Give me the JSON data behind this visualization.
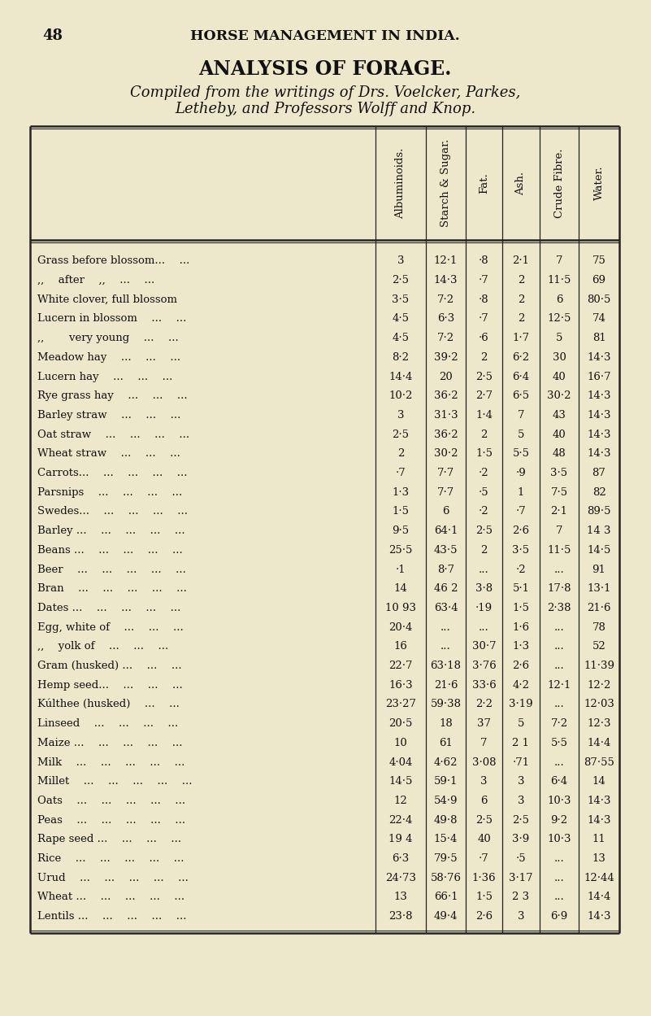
{
  "page_num": "48",
  "header": "HORSE MANAGEMENT IN INDIA.",
  "title": "ANALYSIS OF FORAGE.",
  "subtitle1": "Compiled from the writings of Drs. Voelcker, Parkes,",
  "subtitle2": "Letheby, and Professors Wolff and Knop.",
  "col_headers": [
    "Albuminoids.",
    "Starch & Sugar.",
    "Fat.",
    "Ash.",
    "Crude Fibre.",
    "Water."
  ],
  "rows": [
    [
      "Grass before blossom...  ...",
      "3",
      "12·1",
      "·8",
      "2·1",
      "7",
      "75"
    ],
    [
      ",,  after  ,,  ...  ...",
      "2·5",
      "14·3",
      "·7",
      "2",
      "11·5",
      "69"
    ],
    [
      "White clover, full blossom",
      "3·5",
      "7·2",
      "·8",
      "2",
      "6",
      "80·5"
    ],
    [
      "Lucern in blossom  ...  ...",
      "4·5",
      "6·3",
      "·7",
      "2",
      "12·5",
      "74"
    ],
    [
      ",,   very young  ...  ...",
      "4·5",
      "7·2",
      "·6",
      "1·7",
      "5",
      "81"
    ],
    [
      "Meadow hay  ...  ...  ...",
      "8·2",
      "39·2",
      "2",
      "6·2",
      "30",
      "14·3"
    ],
    [
      "Lucern hay  ...  ...  ...",
      "14·4",
      "20",
      "2·5",
      "6·4",
      "40",
      "16·7"
    ],
    [
      "Rye grass hay  ...  ...  ...",
      "10·2",
      "36·2",
      "2·7",
      "6·5",
      "30·2",
      "14·3"
    ],
    [
      "Barley straw  ...  ...  ...",
      "3",
      "31·3",
      "1·4",
      "7",
      "43",
      "14·3"
    ],
    [
      "Oat straw  ...  ...  ...  ...",
      "2·5",
      "36·2",
      "2",
      "5",
      "40",
      "14·3"
    ],
    [
      "Wheat straw  ...  ...  ...",
      "2",
      "30·2",
      "1·5",
      "5·5",
      "48",
      "14·3"
    ],
    [
      "Carrots...  ...  ...  ...  ...",
      "·7",
      "7·7",
      "·2",
      "·9",
      "3·5",
      "87"
    ],
    [
      "Parsnips  ...  ...  ...  ...",
      "1·3",
      "7·7",
      "·5",
      "1",
      "7·5",
      "82"
    ],
    [
      "Swedes...  ...  ...  ...  ...",
      "1·5",
      "6",
      "·2",
      "·7",
      "2·1",
      "89·5"
    ],
    [
      "Barley ...  ...  ...  ...  ...",
      "9·5",
      "64·1",
      "2·5",
      "2·6",
      "7",
      "14 3"
    ],
    [
      "Beans ...  ...  ...  ...  ...",
      "25·5",
      "43·5",
      "2",
      "3·5",
      "11·5",
      "14·5"
    ],
    [
      "Beer  ...  ...  ...  ...  ...",
      "·1",
      "8·7",
      "...",
      "·2",
      "...",
      "91"
    ],
    [
      "Bran  ...  ...  ...  ...  ...",
      "14",
      "46 2",
      "3·8",
      "5·1",
      "17·8",
      "13·1"
    ],
    [
      "Dates ...  ...  ...  ...  ...",
      "10 93",
      "63·4",
      "·19",
      "1·5",
      "2·38",
      "21·6"
    ],
    [
      "Egg, white of  ...  ...  ...",
      "20·4",
      "...",
      "...",
      "1·6",
      "...",
      "78"
    ],
    [
      ",,  yolk of  ...  ...  ...",
      "16",
      "...",
      "30·7",
      "1·3",
      "...",
      "52"
    ],
    [
      "Gram (husked) ...  ...  ...",
      "22·7",
      "63·18",
      "3·76",
      "2·6",
      "...",
      "11·39"
    ],
    [
      "Hemp seed...  ...  ...  ...",
      "16·3",
      "21·6",
      "33·6",
      "4·2",
      "12·1",
      "12·2"
    ],
    [
      "Kúlthee (husked)  ...  ...",
      "23·27",
      "59·38",
      "2·2",
      "3·19",
      "...",
      "12·03"
    ],
    [
      "Linseed  ...  ...  ...  ...",
      "20·5",
      "18",
      "37",
      "5",
      "7·2",
      "12·3"
    ],
    [
      "Maize ...  ...  ...  ...  ...",
      "10",
      "61",
      "7",
      "2 1",
      "5·5",
      "14·4"
    ],
    [
      "Milk  ...  ...  ...  ...  ...",
      "4·04",
      "4·62",
      "3·08",
      "·71",
      "...",
      "87·55"
    ],
    [
      "Millet  ...  ...  ...  ...  ...",
      "14·5",
      "59·1",
      "3",
      "3",
      "6·4",
      "14"
    ],
    [
      "Oats  ...  ...  ...  ...  ...",
      "12",
      "54·9",
      "6",
      "3",
      "10·3",
      "14·3"
    ],
    [
      "Peas  ...  ...  ...  ...  ...",
      "22·4",
      "49·8",
      "2·5",
      "2·5",
      "9·2",
      "14·3"
    ],
    [
      "Rape seed ...  ...  ...  ...",
      "19 4",
      "15·4",
      "40",
      "3·9",
      "10·3",
      "11"
    ],
    [
      "Rice  ...  ...  ...  ...  ...",
      "6·3",
      "79·5",
      "·7",
      "·5",
      "...",
      "13"
    ],
    [
      "Urud  ...  ...  ...  ...  ...",
      "24·73",
      "58·76",
      "1·36",
      "3·17",
      "...",
      "12·44"
    ],
    [
      "Wheat ...  ...  ...  ...  ...",
      "13",
      "66·1",
      "1·5",
      "2 3",
      "...",
      "14·4"
    ],
    [
      "Lentils ...  ...  ...  ...  ...",
      "23·8",
      "49·4",
      "2·6",
      "3",
      "6·9",
      "14·3"
    ]
  ],
  "bg_color": "#ede8cc",
  "text_color": "#111111",
  "line_color": "#222222"
}
